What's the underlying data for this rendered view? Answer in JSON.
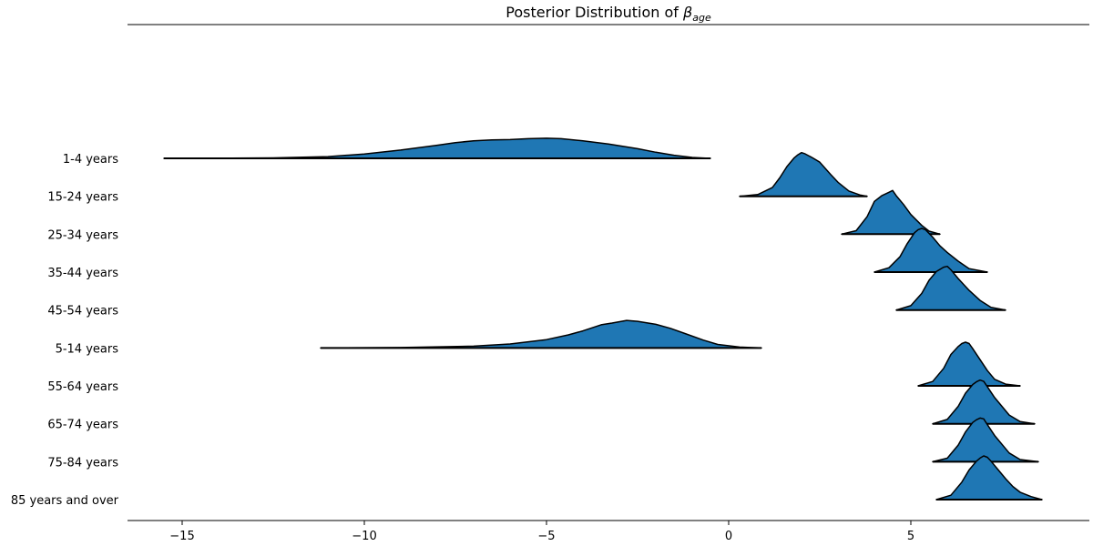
{
  "chart_data": {
    "type": "ridgeline",
    "title_prefix": "Posterior Distribution of ",
    "title_symbol": "β",
    "title_subscript": "age",
    "xlabel": "",
    "ylabel": "",
    "xlim": [
      -16.5,
      9.9
    ],
    "xticks": [
      -15,
      -10,
      -5,
      0,
      5
    ],
    "xtick_labels": [
      "−15",
      "−10",
      "−5",
      "0",
      "5"
    ],
    "fill_color": "#1f77b4",
    "edge_color": "#000000",
    "categories": [
      "1-4 years",
      "15-24 years",
      "25-34 years",
      "35-44 years",
      "45-54 years",
      "5-14 years",
      "55-64 years",
      "65-74 years",
      "75-84 years",
      "85 years and over"
    ],
    "series": [
      {
        "category": "1-4 years",
        "x": [
          -15.5,
          -14,
          -12.5,
          -11,
          -10,
          -9,
          -8,
          -7.5,
          -7,
          -6.5,
          -6,
          -5.5,
          -5,
          -4.6,
          -4,
          -3.3,
          -2.5,
          -2,
          -1.5,
          -1,
          -0.5
        ],
        "y": [
          0.0,
          0.003,
          0.01,
          0.04,
          0.1,
          0.19,
          0.3,
          0.36,
          0.4,
          0.42,
          0.43,
          0.45,
          0.46,
          0.45,
          0.4,
          0.33,
          0.22,
          0.14,
          0.07,
          0.02,
          0.0
        ]
      },
      {
        "category": "15-24 years",
        "x": [
          0.3,
          0.8,
          1.2,
          1.4,
          1.6,
          1.8,
          1.9,
          2.0,
          2.1,
          2.3,
          2.5,
          2.8,
          3.0,
          3.3,
          3.6,
          3.8
        ],
        "y": [
          0.0,
          0.04,
          0.2,
          0.42,
          0.68,
          0.88,
          0.95,
          1.0,
          0.97,
          0.88,
          0.78,
          0.5,
          0.32,
          0.12,
          0.03,
          0.0
        ]
      },
      {
        "category": "25-34 years",
        "x": [
          3.1,
          3.5,
          3.8,
          4.0,
          4.2,
          4.3,
          4.4,
          4.5,
          4.6,
          4.8,
          5.0,
          5.3,
          5.5,
          5.8
        ],
        "y": [
          0.0,
          0.08,
          0.4,
          0.75,
          0.88,
          0.92,
          0.96,
          1.0,
          0.88,
          0.68,
          0.45,
          0.2,
          0.07,
          0.0
        ]
      },
      {
        "category": "35-44 years",
        "x": [
          4.0,
          4.4,
          4.7,
          4.9,
          5.1,
          5.2,
          5.3,
          5.4,
          5.6,
          5.8,
          6.0,
          6.3,
          6.6,
          7.1
        ],
        "y": [
          0.0,
          0.1,
          0.35,
          0.65,
          0.9,
          0.97,
          1.0,
          0.97,
          0.8,
          0.6,
          0.45,
          0.25,
          0.08,
          0.0
        ]
      },
      {
        "category": "45-54 years",
        "x": [
          4.6,
          5.0,
          5.3,
          5.5,
          5.7,
          5.8,
          5.9,
          6.0,
          6.1,
          6.3,
          6.6,
          6.9,
          7.2,
          7.6
        ],
        "y": [
          0.0,
          0.1,
          0.38,
          0.68,
          0.88,
          0.93,
          0.98,
          1.0,
          0.92,
          0.72,
          0.45,
          0.22,
          0.06,
          0.0
        ]
      },
      {
        "category": "5-14 years",
        "x": [
          -11.2,
          -9,
          -7,
          -6,
          -5,
          -4.4,
          -4,
          -3.5,
          -3.2,
          -2.8,
          -2.5,
          -2,
          -1.6,
          -1.2,
          -0.7,
          -0.3,
          0.3,
          0.9
        ],
        "y": [
          0.0,
          0.01,
          0.04,
          0.09,
          0.19,
          0.3,
          0.39,
          0.53,
          0.57,
          0.63,
          0.61,
          0.54,
          0.45,
          0.33,
          0.18,
          0.08,
          0.02,
          0.0
        ]
      },
      {
        "category": "55-64 years",
        "x": [
          5.2,
          5.6,
          5.9,
          6.1,
          6.3,
          6.4,
          6.5,
          6.6,
          6.7,
          6.9,
          7.1,
          7.3,
          7.6,
          8.0
        ],
        "y": [
          0.0,
          0.1,
          0.4,
          0.72,
          0.9,
          0.97,
          1.0,
          0.97,
          0.85,
          0.6,
          0.35,
          0.15,
          0.04,
          0.0
        ]
      },
      {
        "category": "65-74 years",
        "x": [
          5.6,
          6.0,
          6.3,
          6.5,
          6.7,
          6.8,
          6.9,
          7.0,
          7.1,
          7.3,
          7.5,
          7.7,
          8.0,
          8.4
        ],
        "y": [
          0.0,
          0.1,
          0.4,
          0.7,
          0.9,
          0.96,
          1.0,
          0.97,
          0.85,
          0.6,
          0.4,
          0.2,
          0.05,
          0.0
        ]
      },
      {
        "category": "75-84 years",
        "x": [
          5.6,
          6.0,
          6.3,
          6.5,
          6.7,
          6.8,
          6.9,
          7.0,
          7.1,
          7.3,
          7.5,
          7.7,
          8.0,
          8.5
        ],
        "y": [
          0.0,
          0.08,
          0.38,
          0.68,
          0.9,
          0.96,
          1.0,
          0.98,
          0.85,
          0.6,
          0.4,
          0.2,
          0.05,
          0.0
        ]
      },
      {
        "category": "85 years and over",
        "x": [
          5.7,
          6.1,
          6.4,
          6.6,
          6.8,
          6.9,
          7.0,
          7.1,
          7.2,
          7.4,
          7.6,
          7.8,
          8.0,
          8.3,
          8.6
        ],
        "y": [
          0.0,
          0.1,
          0.4,
          0.68,
          0.88,
          0.95,
          1.0,
          0.97,
          0.88,
          0.68,
          0.48,
          0.3,
          0.17,
          0.07,
          0.0
        ]
      }
    ]
  }
}
